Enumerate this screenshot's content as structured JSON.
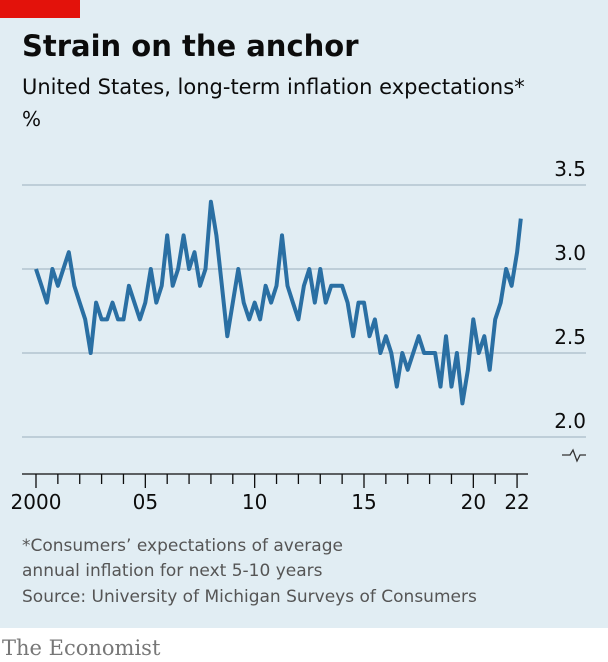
{
  "chart_data": {
    "type": "line",
    "title": "Strain on the anchor",
    "subtitle": "United States, long-term inflation expectations*",
    "unit": "%",
    "footnote": [
      "*Consumers’ expectations of average",
      "annual inflation for next 5-10 years"
    ],
    "source": "Source: University of Michigan Surveys of Consumers",
    "brand": "The Economist",
    "x": [
      2000,
      2000.25,
      2000.5,
      2000.75,
      2001,
      2001.25,
      2001.5,
      2001.75,
      2002,
      2002.25,
      2002.5,
      2002.75,
      2003,
      2003.25,
      2003.5,
      2003.75,
      2004,
      2004.25,
      2004.5,
      2004.75,
      2005,
      2005.25,
      2005.5,
      2005.75,
      2006,
      2006.25,
      2006.5,
      2006.75,
      2007,
      2007.25,
      2007.5,
      2007.75,
      2008,
      2008.25,
      2008.5,
      2008.75,
      2009,
      2009.25,
      2009.5,
      2009.75,
      2010,
      2010.25,
      2010.5,
      2010.75,
      2011,
      2011.25,
      2011.5,
      2011.75,
      2012,
      2012.25,
      2012.5,
      2012.75,
      2013,
      2013.25,
      2013.5,
      2013.75,
      2014,
      2014.25,
      2014.5,
      2014.75,
      2015,
      2015.25,
      2015.5,
      2015.75,
      2016,
      2016.25,
      2016.5,
      2016.75,
      2017,
      2017.25,
      2017.5,
      2017.75,
      2018,
      2018.25,
      2018.5,
      2018.75,
      2019,
      2019.25,
      2019.5,
      2019.75,
      2020,
      2020.25,
      2020.5,
      2020.75,
      2021,
      2021.25,
      2021.5,
      2021.75,
      2022,
      2022.17
    ],
    "series": [
      {
        "name": "Expectations",
        "color": "#2a6fa3",
        "values": [
          3.0,
          2.9,
          2.8,
          3.0,
          2.9,
          3.0,
          3.1,
          2.9,
          2.8,
          2.7,
          2.5,
          2.8,
          2.7,
          2.7,
          2.8,
          2.7,
          2.7,
          2.9,
          2.8,
          2.7,
          2.8,
          3.0,
          2.8,
          2.9,
          3.2,
          2.9,
          3.0,
          3.2,
          3.0,
          3.1,
          2.9,
          3.0,
          3.4,
          3.2,
          2.9,
          2.6,
          2.8,
          3.0,
          2.8,
          2.7,
          2.8,
          2.7,
          2.9,
          2.8,
          2.9,
          3.2,
          2.9,
          2.8,
          2.7,
          2.9,
          3.0,
          2.8,
          3.0,
          2.8,
          2.9,
          2.9,
          2.9,
          2.8,
          2.6,
          2.8,
          2.8,
          2.6,
          2.7,
          2.5,
          2.6,
          2.5,
          2.3,
          2.5,
          2.4,
          2.5,
          2.6,
          2.5,
          2.5,
          2.5,
          2.3,
          2.6,
          2.3,
          2.5,
          2.2,
          2.4,
          2.7,
          2.5,
          2.6,
          2.4,
          2.7,
          2.8,
          3.0,
          2.9,
          3.1,
          3.3
        ]
      }
    ],
    "xlim": [
      1999.36,
      2022.5
    ],
    "ylim": [
      2.0,
      3.5
    ],
    "yticks": [
      {
        "value": 2.0,
        "label": "2.0"
      },
      3.5,
      {
        "value": 3.0,
        "label": "3.0"
      },
      2.5
    ],
    "xticks": [
      {
        "value": 2000,
        "label": "2000"
      },
      {
        "value": 2005,
        "label": "05"
      },
      {
        "value": 2010,
        "label": "10"
      },
      {
        "value": 2015,
        "label": "15"
      },
      {
        "value": 2020,
        "label": "20"
      },
      {
        "value": 2022,
        "label": "22"
      }
    ],
    "xminorticks": [
      2001,
      2002,
      2003,
      2004,
      2006,
      2007,
      2008,
      2009,
      2011,
      2012,
      2013,
      2014,
      2016,
      2017,
      2018,
      2019,
      2021
    ],
    "grid": true
  }
}
